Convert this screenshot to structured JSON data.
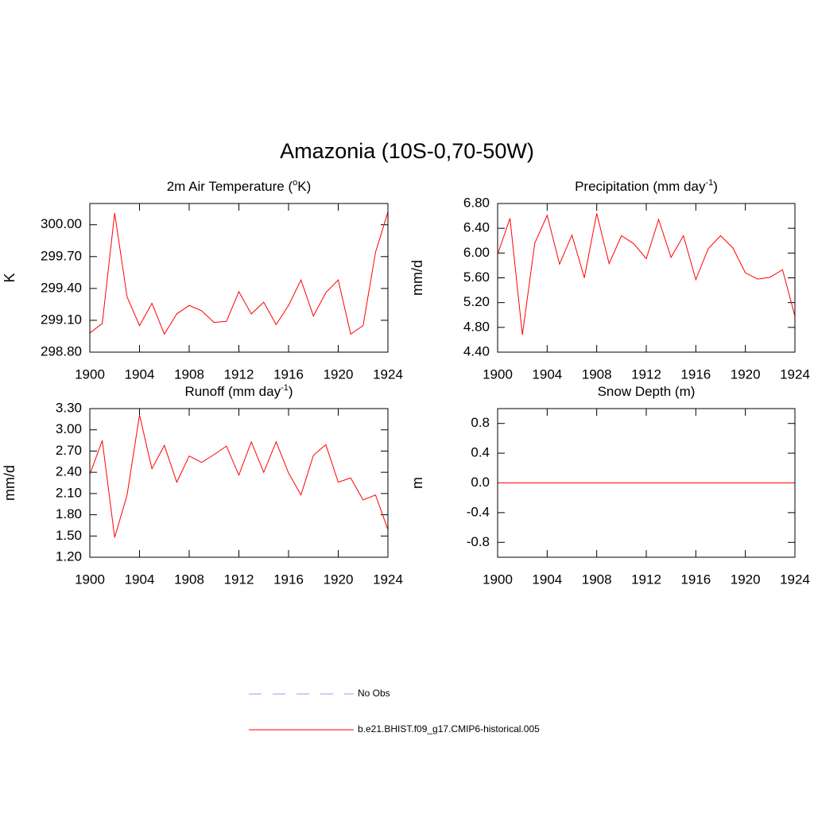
{
  "title": "Amazonia (10S-0,70-50W)",
  "legend": [
    {
      "name": "No Obs",
      "color": "#9999ff",
      "dashed": true
    },
    {
      "name": "b.e21.BHIST.f09_g17.CMIP6-historical.005",
      "color": "#ff0000",
      "dashed": false
    }
  ],
  "chart_data": [
    {
      "type": "line",
      "title_parts": [
        {
          "text": "2m Air Temperature ("
        },
        {
          "text": "o",
          "sup": true
        },
        {
          "text": "K)"
        }
      ],
      "y_label": "K",
      "color": "#ff0000",
      "x": [
        1900,
        1901,
        1902,
        1903,
        1904,
        1905,
        1906,
        1907,
        1908,
        1909,
        1910,
        1911,
        1912,
        1913,
        1914,
        1915,
        1916,
        1917,
        1918,
        1919,
        1920,
        1921,
        1922,
        1923,
        1924
      ],
      "values": [
        298.98,
        299.07,
        300.11,
        299.32,
        299.05,
        299.26,
        298.97,
        299.16,
        299.24,
        299.19,
        299.08,
        299.09,
        299.37,
        299.16,
        299.27,
        299.06,
        299.24,
        299.48,
        299.14,
        299.36,
        299.48,
        298.97,
        299.05,
        299.74,
        300.12
      ],
      "xlim": [
        1900,
        1924
      ],
      "xticks": [
        1900,
        1904,
        1908,
        1912,
        1916,
        1920,
        1924
      ],
      "ylim": [
        298.8,
        300.2
      ],
      "yticks": [
        {
          "value": 298.8,
          "label": "298.80"
        },
        {
          "value": 299.1,
          "label": "299.10"
        },
        {
          "value": 299.4,
          "label": "299.40"
        },
        {
          "value": 299.7,
          "label": "299.70"
        },
        {
          "value": 300,
          "label": "300.00"
        }
      ]
    },
    {
      "type": "line",
      "title_parts": [
        {
          "text": "Precipitation (mm day"
        },
        {
          "text": "-1",
          "sup": true
        },
        {
          "text": ")"
        }
      ],
      "y_label": "mm/d",
      "color": "#ff0000",
      "x": [
        1900,
        1901,
        1902,
        1903,
        1904,
        1905,
        1906,
        1907,
        1908,
        1909,
        1910,
        1911,
        1912,
        1913,
        1914,
        1915,
        1916,
        1917,
        1918,
        1919,
        1920,
        1921,
        1922,
        1923,
        1924
      ],
      "values": [
        5.98,
        6.56,
        4.68,
        6.16,
        6.61,
        5.82,
        6.29,
        5.6,
        6.64,
        5.83,
        6.28,
        6.15,
        5.91,
        6.54,
        5.93,
        6.28,
        5.57,
        6.07,
        6.28,
        6.08,
        5.68,
        5.58,
        5.61,
        5.73,
        4.98
      ],
      "xlim": [
        1900,
        1924
      ],
      "xticks": [
        1900,
        1904,
        1908,
        1912,
        1916,
        1920,
        1924
      ],
      "ylim": [
        4.4,
        6.8
      ],
      "yticks": [
        {
          "value": 4.4,
          "label": "4.40"
        },
        {
          "value": 4.8,
          "label": "4.80"
        },
        {
          "value": 5.2,
          "label": "5.20"
        },
        {
          "value": 5.6,
          "label": "5.60"
        },
        {
          "value": 6,
          "label": "6.00"
        },
        {
          "value": 6.4,
          "label": "6.40"
        },
        {
          "value": 6.8,
          "label": "6.80"
        }
      ]
    },
    {
      "type": "line",
      "title_parts": [
        {
          "text": "Runoff (mm day"
        },
        {
          "text": "-1",
          "sup": true
        },
        {
          "text": ")"
        }
      ],
      "y_label": "mm/d",
      "color": "#ff0000",
      "x": [
        1900,
        1901,
        1902,
        1903,
        1904,
        1905,
        1906,
        1907,
        1908,
        1909,
        1910,
        1911,
        1912,
        1913,
        1914,
        1915,
        1916,
        1917,
        1918,
        1919,
        1920,
        1921,
        1922,
        1923,
        1924
      ],
      "values": [
        2.37,
        2.85,
        1.48,
        2.08,
        3.21,
        2.45,
        2.78,
        2.26,
        2.63,
        2.54,
        2.65,
        2.77,
        2.36,
        2.83,
        2.4,
        2.83,
        2.39,
        2.08,
        2.64,
        2.79,
        2.26,
        2.32,
        2.01,
        2.08,
        1.59
      ],
      "xlim": [
        1900,
        1924
      ],
      "xticks": [
        1900,
        1904,
        1908,
        1912,
        1916,
        1920,
        1924
      ],
      "ylim": [
        1.2,
        3.3
      ],
      "yticks": [
        {
          "value": 1.2,
          "label": "1.20"
        },
        {
          "value": 1.5,
          "label": "1.50"
        },
        {
          "value": 1.8,
          "label": "1.80"
        },
        {
          "value": 2.1,
          "label": "2.10"
        },
        {
          "value": 2.4,
          "label": "2.40"
        },
        {
          "value": 2.7,
          "label": "2.70"
        },
        {
          "value": 3,
          "label": "3.00"
        },
        {
          "value": 3.3,
          "label": "3.30"
        }
      ]
    },
    {
      "type": "line",
      "title_parts": [
        {
          "text": "Snow Depth (m)"
        }
      ],
      "y_label": "m",
      "color": "#ff0000",
      "x": [
        1900,
        1901,
        1902,
        1903,
        1904,
        1905,
        1906,
        1907,
        1908,
        1909,
        1910,
        1911,
        1912,
        1913,
        1914,
        1915,
        1916,
        1917,
        1918,
        1919,
        1920,
        1921,
        1922,
        1923,
        1924
      ],
      "values": [
        0,
        0,
        0,
        0,
        0,
        0,
        0,
        0,
        0,
        0,
        0,
        0,
        0,
        0,
        0,
        0,
        0,
        0,
        0,
        0,
        0,
        0,
        0,
        0,
        0
      ],
      "xlim": [
        1900,
        1924
      ],
      "xticks": [
        1900,
        1904,
        1908,
        1912,
        1916,
        1920,
        1924
      ],
      "ylim": [
        -1,
        1
      ],
      "yticks": [
        -0.8,
        -0.4,
        {
          "value": 0,
          "label": "0.0"
        },
        0.4,
        0.8
      ]
    }
  ]
}
